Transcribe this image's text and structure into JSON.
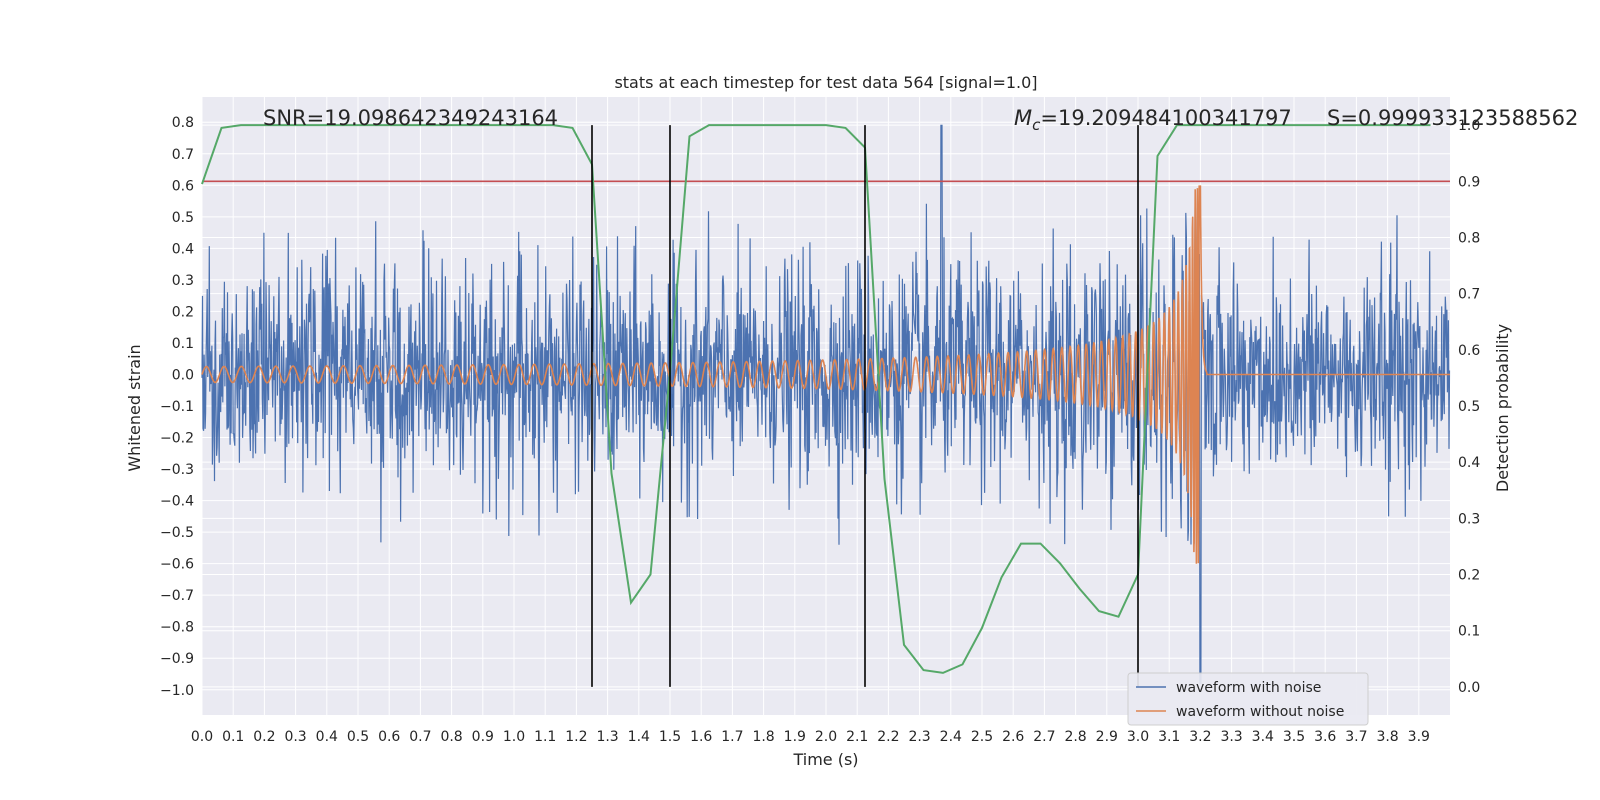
{
  "chart_data": {
    "type": "line",
    "title": "stats at each timestep for test data 564 [signal=1.0]",
    "xlabel": "Time (s)",
    "ylabel_left": "Whitened strain",
    "ylabel_right": "Detection probability",
    "xlim": [
      0.0,
      4.0
    ],
    "ylim_left": [
      -1.08,
      0.88
    ],
    "ylim_right": [
      -0.05,
      1.05
    ],
    "x_ticks": [
      "0.0",
      "0.1",
      "0.2",
      "0.3",
      "0.4",
      "0.5",
      "0.6",
      "0.7",
      "0.8",
      "0.9",
      "1.0",
      "1.1",
      "1.2",
      "1.3",
      "1.4",
      "1.5",
      "1.6",
      "1.7",
      "1.8",
      "1.9",
      "2.0",
      "2.1",
      "2.2",
      "2.3",
      "2.4",
      "2.5",
      "2.6",
      "2.7",
      "2.8",
      "2.9",
      "3.0",
      "3.1",
      "3.2",
      "3.3",
      "3.4",
      "3.5",
      "3.6",
      "3.7",
      "3.8",
      "3.9"
    ],
    "y_left_ticks": [
      "0.8",
      "0.7",
      "0.6",
      "0.5",
      "0.4",
      "0.3",
      "0.2",
      "0.1",
      "0.0",
      "−0.1",
      "−0.2",
      "−0.3",
      "−0.4",
      "−0.5",
      "−0.6",
      "−0.7",
      "−0.8",
      "−0.9",
      "−1.0"
    ],
    "y_right_ticks": [
      "1.0",
      "0.9",
      "0.8",
      "0.7",
      "0.6",
      "0.5",
      "0.4",
      "0.3",
      "0.2",
      "0.1",
      "0.0"
    ],
    "annotations": {
      "snr": "SNR=19.098642349243164",
      "mc_symbol": "M",
      "mc_sub": "c",
      "mc_value": "=19.209484100341797",
      "s": "S=0.999933123588562"
    },
    "threshold": {
      "value": 0.9,
      "axis": "right",
      "color": "#c44e52"
    },
    "vertical_lines": [
      1.25,
      1.5,
      2.125,
      3.0
    ],
    "series": [
      {
        "name": "waveform with noise",
        "color": "#4c72b0",
        "axis": "left",
        "description": "whitened noisy strain, amplitude approx ±0.5, spike to 0.79 near t=2.37 and dip to -0.98 near t=3.2"
      },
      {
        "name": "waveform without noise",
        "color": "#dd8452",
        "axis": "left",
        "chirp": {
          "start_amplitude": 0.025,
          "peak_amplitude": 0.6,
          "merger_time": 3.2,
          "start_freq": 15,
          "end_freq": 110
        }
      },
      {
        "name": "detection probability",
        "color": "#55a868",
        "axis": "right",
        "x": [
          0.0,
          0.0625,
          0.125,
          0.1875,
          0.25,
          0.3125,
          0.375,
          0.4375,
          0.5,
          0.5625,
          0.625,
          0.6875,
          0.75,
          0.8125,
          0.875,
          0.9375,
          1.0,
          1.0625,
          1.125,
          1.1875,
          1.25,
          1.3125,
          1.375,
          1.4375,
          1.5,
          1.5625,
          1.625,
          1.6875,
          1.75,
          1.8125,
          1.875,
          1.9375,
          2.0,
          2.0625,
          2.125,
          2.1875,
          2.25,
          2.3125,
          2.375,
          2.4375,
          2.5,
          2.5625,
          2.625,
          2.6875,
          2.75,
          2.8125,
          2.875,
          2.9375,
          3.0,
          3.0625,
          3.125,
          3.1875,
          3.25,
          3.3125,
          3.375,
          3.4375,
          3.5,
          3.5625,
          3.625,
          3.6875,
          3.75,
          3.8125,
          3.875,
          3.9375
        ],
        "y": [
          0.895,
          0.995,
          1.0,
          1.0,
          1.0,
          1.0,
          1.0,
          1.0,
          1.0,
          1.0,
          1.0,
          1.0,
          1.0,
          1.0,
          1.0,
          1.0,
          1.0,
          1.0,
          1.0,
          0.995,
          0.93,
          0.38,
          0.15,
          0.2,
          0.56,
          0.98,
          1.0,
          1.0,
          1.0,
          1.0,
          1.0,
          1.0,
          1.0,
          0.995,
          0.96,
          0.37,
          0.075,
          0.03,
          0.025,
          0.04,
          0.105,
          0.195,
          0.255,
          0.255,
          0.22,
          0.175,
          0.135,
          0.125,
          0.2,
          0.945,
          1.0,
          1.0,
          1.0,
          1.0,
          1.0,
          1.0,
          1.0,
          1.0,
          1.0,
          1.0,
          1.0,
          1.0,
          1.0,
          1.0
        ]
      }
    ],
    "legend": {
      "position": "lower-right",
      "entries": [
        {
          "label": "waveform with noise",
          "color": "#4c72b0"
        },
        {
          "label": "waveform without noise",
          "color": "#dd8452"
        }
      ]
    },
    "background": "#eaeaf2",
    "grid": true
  }
}
